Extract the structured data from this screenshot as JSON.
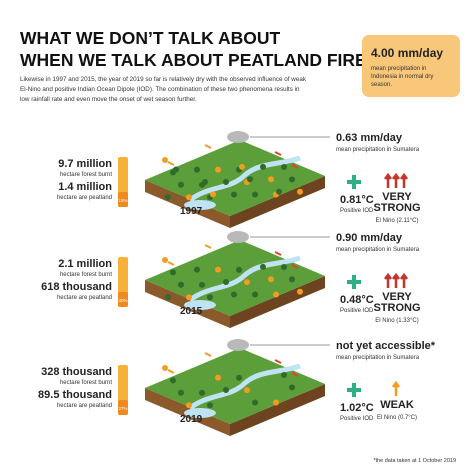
{
  "header": {
    "title_line1": "WHAT WE DON’T TALK ABOUT",
    "title_line2": "WHEN WE TALK ABOUT PEATLAND FIRES",
    "intro_lines": [
      "Likewise in 1997 and 2015, the year of 2019 so far is relatively dry with the observed influence of weak",
      "El-Nino and positive Indian Ocean Dipole (IOD). The combination of these two phenomena results in",
      "low rainfall rate and even move the onset of wet season further."
    ]
  },
  "callout": {
    "value": "4.00 mm/day",
    "lines": [
      "mean precipitation in",
      "Indonesia in normal dry",
      "season."
    ]
  },
  "rows": [
    {
      "year": "1997",
      "burnt": "9.7 million",
      "burnt_label": "hectare forest burnt",
      "peat": "1.4 million",
      "peat_label": "hectare are peatland",
      "percent": "15%",
      "precip": "0.63 mm/day",
      "precip_label": "mean precipitation in Sumatera",
      "iod": "0.81°C",
      "iod_label": "Positive IOD",
      "elnino": [
        "VERY",
        "STRONG"
      ],
      "elnino_label": "El Nino (2.11°C)"
    },
    {
      "year": "2015",
      "burnt": "2.1 million",
      "burnt_label": "hectare forest burnt",
      "peat": "618 thousand",
      "peat_label": "hectare are peatland",
      "percent": "30%",
      "precip": "0.90 mm/day",
      "precip_label": "mean precipitation in Sumatera",
      "iod": "0.48°C",
      "iod_label": "Positive IOD",
      "elnino": [
        "VERY",
        "STRONG"
      ],
      "elnino_label": "El Nino (1.33°C)"
    },
    {
      "year": "2019",
      "burnt": "328 thousand",
      "burnt_label": "hectare forest burnt",
      "peat": "89.5 thousand",
      "peat_label": "hectare are peatland",
      "percent": "27%",
      "precip": "not yet accessible*",
      "precip_label": "mean precipitation in Sumatera",
      "iod": "1.02°C",
      "iod_label": "Positive IOD",
      "elnino": [
        "WEAK"
      ],
      "elnino_label": "El Nino (0.7°C)"
    }
  ],
  "footnote": "*the data taken at 1 October 2019"
}
